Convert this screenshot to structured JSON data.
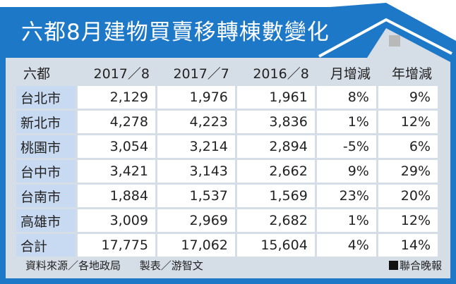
{
  "colors": {
    "blue": "#1e78c8",
    "panel": "#d5dde7",
    "city_cell": "#c8daf2",
    "chimney": "#b9b9b9"
  },
  "title": "六都8月建物買賣移轉棟數變化",
  "header": {
    "city": "六都",
    "cols": [
      "2017／8",
      "2017／7",
      "2016／8",
      "月增減",
      "年增減"
    ]
  },
  "rows": [
    {
      "city": "台北市",
      "v": [
        "2,129",
        "1,976",
        "1,961",
        "8%",
        "9%"
      ]
    },
    {
      "city": "新北市",
      "v": [
        "4,278",
        "4,223",
        "3,836",
        "1%",
        "12%"
      ]
    },
    {
      "city": "桃園市",
      "v": [
        "3,054",
        "3,214",
        "2,894",
        "-5%",
        "6%"
      ]
    },
    {
      "city": "台中市",
      "v": [
        "3,421",
        "3,143",
        "2,662",
        "9%",
        "29%"
      ]
    },
    {
      "city": "台南市",
      "v": [
        "1,884",
        "1,537",
        "1,569",
        "23%",
        "20%"
      ]
    },
    {
      "city": "高雄市",
      "v": [
        "3,009",
        "2,969",
        "2,682",
        "1%",
        "12%"
      ]
    },
    {
      "city": "合計",
      "v": [
        "17,775",
        "17,062",
        "15,604",
        "4%",
        "14%"
      ]
    }
  ],
  "footer": {
    "source": "資料來源／各地政局",
    "maker": "製表／游智文",
    "brand": "聯合晚報"
  }
}
